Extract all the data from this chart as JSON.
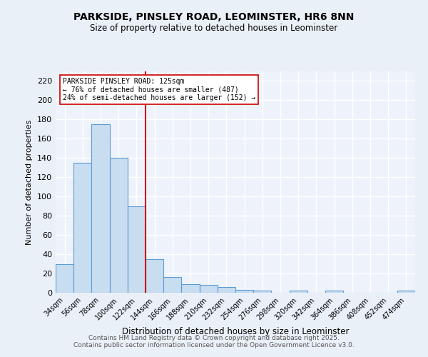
{
  "title1": "PARKSIDE, PINSLEY ROAD, LEOMINSTER, HR6 8NN",
  "title2": "Size of property relative to detached houses in Leominster",
  "xlabel": "Distribution of detached houses by size in Leominster",
  "ylabel": "Number of detached properties",
  "categories": [
    "34sqm",
    "56sqm",
    "78sqm",
    "100sqm",
    "122sqm",
    "144sqm",
    "166sqm",
    "188sqm",
    "210sqm",
    "232sqm",
    "254sqm",
    "276sqm",
    "298sqm",
    "320sqm",
    "342sqm",
    "364sqm",
    "386sqm",
    "408sqm",
    "452sqm",
    "474sqm"
  ],
  "values": [
    30,
    135,
    175,
    140,
    90,
    35,
    16,
    9,
    8,
    6,
    3,
    2,
    0,
    2,
    0,
    2,
    0,
    0,
    0,
    2
  ],
  "bar_color": "#c9ddf0",
  "bar_edge_color": "#5b9bd5",
  "annotation_title": "PARKSIDE PINSLEY ROAD: 125sqm",
  "annotation_line1": "← 76% of detached houses are smaller (487)",
  "annotation_line2": "24% of semi-detached houses are larger (152) →",
  "ylim": [
    0,
    230
  ],
  "yticks": [
    0,
    20,
    40,
    60,
    80,
    100,
    120,
    140,
    160,
    180,
    200,
    220
  ],
  "bg_color": "#eaf0f8",
  "plot_bg_color": "#eef3fb",
  "grid_color": "#ffffff",
  "footer1": "Contains HM Land Registry data © Crown copyright and database right 2025.",
  "footer2": "Contains public sector information licensed under the Open Government Licence v3.0."
}
